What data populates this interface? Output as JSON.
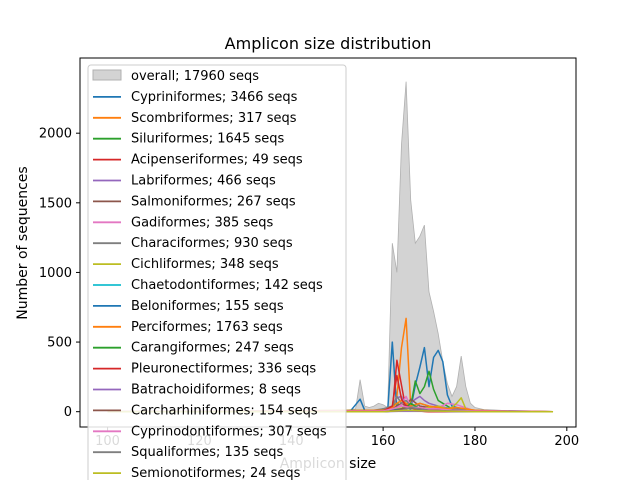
{
  "chart_data": {
    "type": "line",
    "title": "Amplicon size distribution",
    "xlabel": "Amplicon size",
    "ylabel": "Number of sequences",
    "xlim": [
      94,
      202
    ],
    "ylim": [
      -110,
      2540
    ],
    "xticks": [
      100,
      120,
      140,
      160,
      180,
      200
    ],
    "yticks": [
      0,
      500,
      1000,
      1500,
      2000
    ],
    "grid": false,
    "legend_position": "upper-left",
    "overall": {
      "name": "overall; 17960 seqs",
      "color": "#d3d3d3",
      "x": [
        100,
        150,
        152,
        154,
        155,
        156,
        157,
        158,
        159,
        160,
        161,
        162,
        163,
        164,
        165,
        166,
        167,
        168,
        169,
        170,
        171,
        172,
        173,
        174,
        175,
        176,
        177,
        178,
        179,
        180,
        182,
        185,
        190,
        197
      ],
      "y": [
        0,
        0,
        10,
        20,
        230,
        40,
        30,
        40,
        60,
        50,
        30,
        1210,
        1000,
        1920,
        2370,
        1520,
        1210,
        1260,
        1340,
        860,
        720,
        560,
        360,
        200,
        110,
        180,
        400,
        180,
        60,
        30,
        15,
        10,
        5,
        0
      ]
    },
    "series": [
      {
        "name": "Cypriniformes; 3466 seqs",
        "color": "#1f77b4",
        "x": [
          100,
          150,
          153,
          155,
          156,
          158,
          160,
          161,
          162,
          163,
          164,
          165,
          166,
          167,
          168,
          169,
          170,
          171,
          172,
          173,
          174,
          175,
          177,
          180,
          190,
          197
        ],
        "y": [
          0,
          0,
          10,
          90,
          10,
          5,
          20,
          10,
          500,
          10,
          20,
          30,
          20,
          190,
          320,
          460,
          180,
          390,
          440,
          360,
          120,
          40,
          20,
          5,
          0,
          0
        ]
      },
      {
        "name": "Scombriformes; 317 seqs",
        "color": "#ff7f0e",
        "x": [
          100,
          160,
          162,
          163,
          164,
          165,
          166,
          167,
          168,
          170,
          180,
          197
        ],
        "y": [
          0,
          0,
          20,
          110,
          460,
          670,
          40,
          10,
          5,
          0,
          0,
          0
        ]
      },
      {
        "name": "Siluriformes; 1645 seqs",
        "color": "#2ca02c",
        "x": [
          100,
          160,
          162,
          163,
          164,
          165,
          166,
          167,
          168,
          169,
          170,
          171,
          172,
          173,
          174,
          175,
          176,
          178,
          180,
          197
        ],
        "y": [
          0,
          10,
          40,
          60,
          40,
          20,
          40,
          220,
          130,
          180,
          290,
          160,
          80,
          60,
          40,
          20,
          10,
          5,
          0,
          0
        ]
      },
      {
        "name": "Acipenseriformes; 49 seqs",
        "color": "#d62728",
        "x": [
          100,
          160,
          162,
          163,
          164,
          165,
          170,
          197
        ],
        "y": [
          0,
          0,
          5,
          370,
          190,
          10,
          0,
          0
        ]
      },
      {
        "name": "Labriformes; 466 seqs",
        "color": "#9467bd",
        "x": [
          100,
          160,
          162,
          163,
          164,
          165,
          166,
          167,
          168,
          169,
          170,
          172,
          175,
          180,
          197
        ],
        "y": [
          0,
          5,
          40,
          100,
          110,
          40,
          60,
          90,
          110,
          80,
          60,
          40,
          20,
          5,
          0
        ]
      },
      {
        "name": "Salmoniformes; 267 seqs",
        "color": "#8c564b",
        "x": [
          100,
          160,
          162,
          164,
          165,
          166,
          168,
          170,
          172,
          175,
          180,
          197
        ],
        "y": [
          0,
          0,
          20,
          60,
          40,
          90,
          40,
          30,
          20,
          10,
          0,
          0
        ]
      },
      {
        "name": "Gadiformes; 385 seqs",
        "color": "#e377c2",
        "x": [
          100,
          160,
          162,
          163,
          164,
          165,
          166,
          168,
          170,
          172,
          174,
          176,
          180,
          197
        ],
        "y": [
          0,
          0,
          10,
          30,
          50,
          110,
          40,
          20,
          20,
          30,
          60,
          50,
          5,
          0
        ]
      },
      {
        "name": "Characiformes; 930 seqs",
        "color": "#7f7f7f",
        "x": [
          100,
          155,
          158,
          160,
          162,
          163,
          164,
          165,
          166,
          167,
          168,
          170,
          172,
          175,
          180,
          190,
          197
        ],
        "y": [
          0,
          5,
          10,
          20,
          40,
          110,
          60,
          80,
          40,
          30,
          60,
          40,
          30,
          20,
          10,
          5,
          0
        ]
      },
      {
        "name": "Cichliformes; 348 seqs",
        "color": "#bcbd22",
        "x": [
          100,
          160,
          163,
          165,
          168,
          170,
          172,
          174,
          175,
          176,
          177,
          178,
          180,
          197
        ],
        "y": [
          0,
          0,
          20,
          30,
          20,
          30,
          40,
          20,
          30,
          60,
          100,
          20,
          5,
          0
        ]
      },
      {
        "name": "Chaetodontiformes; 142 seqs",
        "color": "#17becf",
        "x": [
          100,
          160,
          164,
          165,
          166,
          168,
          170,
          180,
          197
        ],
        "y": [
          0,
          0,
          10,
          30,
          40,
          10,
          5,
          0,
          0
        ]
      },
      {
        "name": "Beloniformes; 155 seqs",
        "color": "#1f77b4",
        "x": [
          100,
          160,
          162,
          164,
          166,
          168,
          170,
          175,
          180,
          197
        ],
        "y": [
          0,
          0,
          10,
          20,
          30,
          20,
          10,
          5,
          0,
          0
        ]
      },
      {
        "name": "Perciformes; 1763 seqs",
        "color": "#ff7f0e",
        "x": [
          100,
          160,
          162,
          163,
          164,
          165,
          166,
          167,
          168,
          170,
          172,
          174,
          176,
          178,
          180,
          185,
          197
        ],
        "y": [
          0,
          10,
          30,
          60,
          80,
          60,
          40,
          50,
          60,
          40,
          30,
          20,
          30,
          20,
          10,
          5,
          0
        ]
      },
      {
        "name": "Carangiformes; 247 seqs",
        "color": "#2ca02c",
        "x": [
          100,
          160,
          163,
          165,
          166,
          167,
          168,
          170,
          175,
          180,
          197
        ],
        "y": [
          0,
          0,
          10,
          30,
          60,
          40,
          20,
          10,
          5,
          0,
          0
        ]
      },
      {
        "name": "Pleuronectiformes; 336 seqs",
        "color": "#d62728",
        "x": [
          100,
          160,
          162,
          163,
          164,
          165,
          166,
          168,
          170,
          180,
          197
        ],
        "y": [
          0,
          5,
          40,
          260,
          90,
          40,
          30,
          20,
          10,
          5,
          0
        ]
      },
      {
        "name": "Batrachoidiformes; 8 seqs",
        "color": "#9467bd",
        "x": [
          100,
          160,
          165,
          170,
          180,
          197
        ],
        "y": [
          0,
          0,
          5,
          3,
          0,
          0
        ]
      },
      {
        "name": "Carcharhiniformes; 154 seqs",
        "color": "#8c564b",
        "x": [
          100,
          160,
          163,
          165,
          167,
          170,
          175,
          180,
          197
        ],
        "y": [
          0,
          0,
          10,
          30,
          20,
          10,
          5,
          0,
          0
        ]
      },
      {
        "name": "Cyprinodontiformes; 307 seqs",
        "color": "#e377c2",
        "x": [
          100,
          160,
          162,
          164,
          166,
          168,
          170,
          172,
          175,
          180,
          197
        ],
        "y": [
          0,
          5,
          20,
          40,
          30,
          30,
          20,
          20,
          10,
          5,
          0
        ]
      },
      {
        "name": "Squaliformes; 135 seqs",
        "color": "#7f7f7f",
        "x": [
          100,
          160,
          164,
          166,
          168,
          170,
          180,
          197
        ],
        "y": [
          0,
          0,
          10,
          30,
          20,
          10,
          0,
          0
        ]
      },
      {
        "name": "Semionotiformes; 24 seqs",
        "color": "#bcbd22",
        "x": [
          100,
          160,
          165,
          170,
          180,
          197
        ],
        "y": [
          0,
          0,
          10,
          5,
          0,
          0
        ]
      }
    ]
  }
}
